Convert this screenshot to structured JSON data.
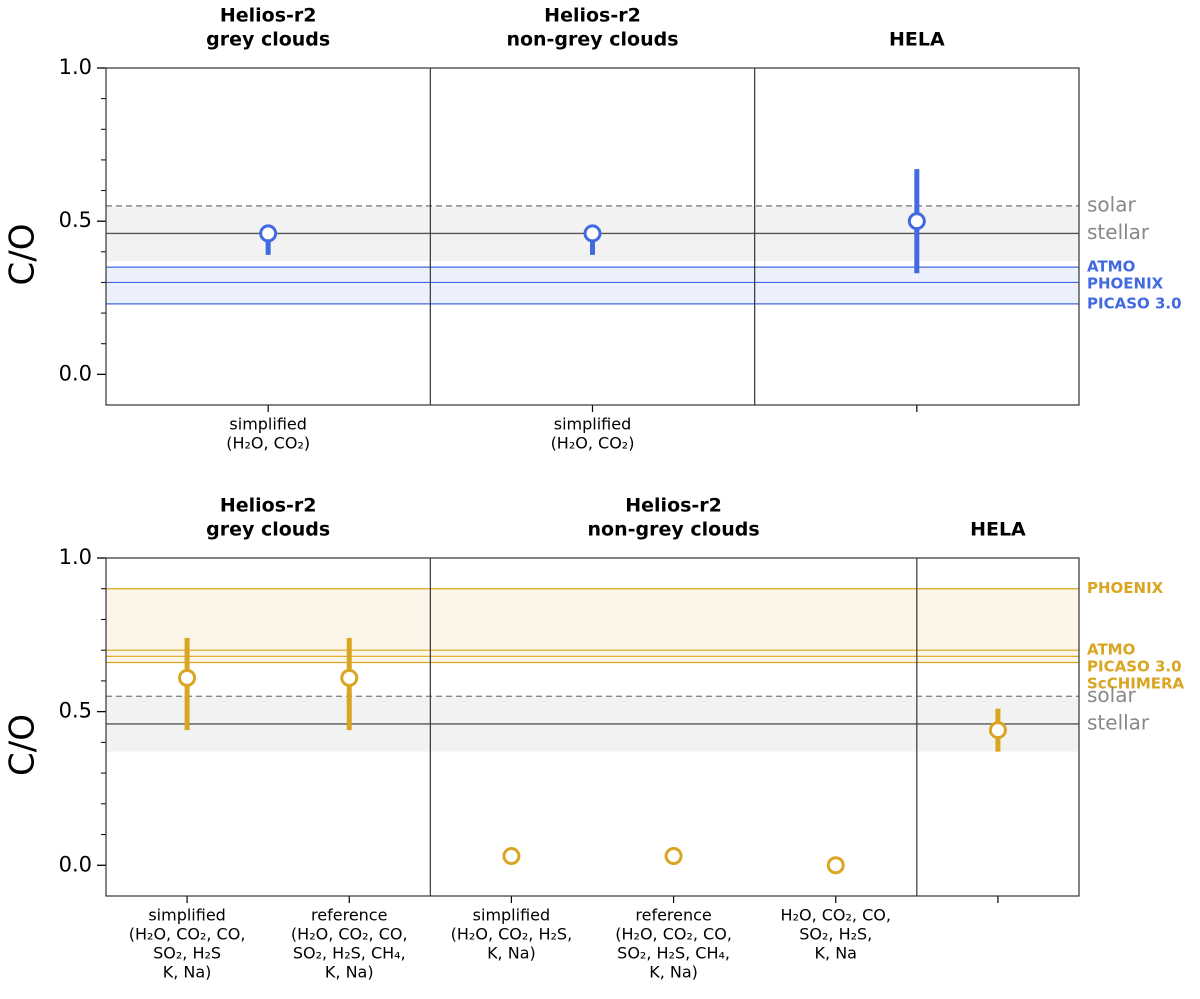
{
  "chart_data": [
    {
      "type": "errorbar",
      "ylabel": "C/O",
      "ylim": [
        -0.1,
        1.0
      ],
      "yticks": [
        {
          "value": 0,
          "label": "0.0"
        },
        0.5,
        {
          "value": 1,
          "label": "1.0"
        }
      ],
      "minor_yticks": [
        0.1,
        0.2,
        0.3,
        0.4,
        0.6,
        0.7,
        0.8,
        0.9
      ],
      "color": "#4169e1",
      "groups": [
        {
          "title": [
            "Helios-r2",
            "grey clouds"
          ],
          "categories": [
            [
              "simplified",
              "(H₂O, CO₂)"
            ]
          ],
          "values": [
            0.46
          ],
          "lower": [
            0.39
          ],
          "upper": [
            0.46
          ]
        },
        {
          "title": [
            "Helios-r2",
            "non-grey clouds"
          ],
          "categories": [
            [
              "simplified",
              "(H₂O, CO₂)"
            ]
          ],
          "values": [
            0.46
          ],
          "lower": [
            0.39
          ],
          "upper": [
            0.46
          ]
        },
        {
          "title": [
            "HELA"
          ],
          "categories": [
            null
          ],
          "values": [
            0.5
          ],
          "lower": [
            0.33
          ],
          "upper": [
            0.67
          ]
        }
      ],
      "bands": [
        {
          "from": 0.37,
          "to": 0.55,
          "color": "#f2f2f2"
        }
      ],
      "reference_lines": [
        {
          "name": "solar",
          "value": 0.55,
          "style": "dashed",
          "color": "#888888"
        },
        {
          "name": "stellar",
          "value": 0.46,
          "style": "solid",
          "color": "#888888"
        }
      ],
      "model_lines": [
        {
          "name": "ATMO",
          "value": 0.35
        },
        {
          "name": "PHOENIX",
          "value": 0.3
        },
        {
          "name": "PICASO 3.0",
          "value": 0.23
        }
      ]
    },
    {
      "type": "errorbar",
      "ylabel": "C/O",
      "ylim": [
        -0.1,
        1.0
      ],
      "yticks": [
        {
          "value": 0,
          "label": "0.0"
        },
        0.5,
        {
          "value": 1,
          "label": "1.0"
        }
      ],
      "minor_yticks": [
        0.1,
        0.2,
        0.3,
        0.4,
        0.6,
        0.7,
        0.8,
        0.9
      ],
      "color": "#daa520",
      "groups": [
        {
          "title": [
            "Helios-r2",
            "grey clouds"
          ],
          "categories": [
            [
              "simplified",
              "(H₂O, CO₂, CO,",
              "SO₂, H₂S",
              "K, Na)"
            ],
            [
              "reference",
              "(H₂O, CO₂, CO,",
              "SO₂, H₂S, CH₄,",
              "K, Na)"
            ]
          ],
          "values": [
            0.61,
            0.61
          ],
          "lower": [
            0.44,
            0.44
          ],
          "upper": [
            0.74,
            0.74
          ]
        },
        {
          "title": [
            "Helios-r2",
            "non-grey clouds"
          ],
          "categories": [
            [
              "simplified",
              "(H₂O, CO₂, H₂S,",
              "K, Na)"
            ],
            [
              "reference",
              "(H₂O, CO₂, CO,",
              "SO₂, H₂S, CH₄,",
              "K, Na)"
            ],
            [
              "H₂O, CO₂, CO,",
              "SO₂, H₂S,",
              "K, Na"
            ]
          ],
          "values": [
            0.03,
            0.03,
            0.0
          ],
          "lower": [
            null,
            null,
            null
          ],
          "upper": [
            null,
            null,
            null
          ]
        },
        {
          "title": [
            "HELA"
          ],
          "categories": [
            null
          ],
          "values": [
            0.44
          ],
          "lower": [
            0.37
          ],
          "upper": [
            0.51
          ]
        }
      ],
      "bands": [
        {
          "from": 0.37,
          "to": 0.55,
          "color": "#f2f2f2"
        }
      ],
      "reference_lines": [
        {
          "name": "solar",
          "value": 0.55,
          "style": "dashed",
          "color": "#888888"
        },
        {
          "name": "stellar",
          "value": 0.46,
          "style": "solid",
          "color": "#888888"
        }
      ],
      "model_lines": [
        {
          "name": "PHOENIX",
          "value": 0.9
        },
        {
          "name": "ATMO",
          "value": 0.7
        },
        {
          "name": "PICASO 3.0",
          "value": 0.68
        },
        {
          "name": "ScCHIMERA",
          "value": 0.66
        }
      ]
    }
  ]
}
